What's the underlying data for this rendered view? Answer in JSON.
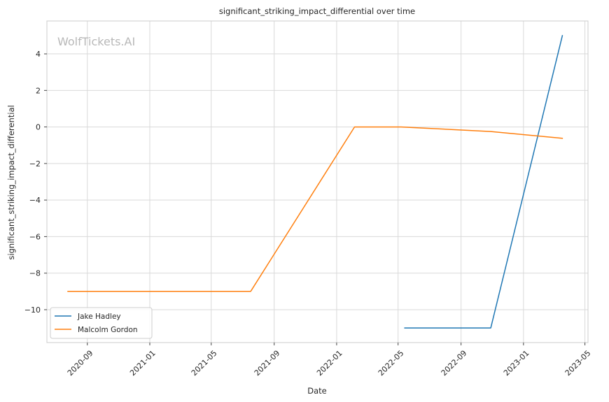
{
  "chart_data": {
    "type": "line",
    "title": "significant_striking_impact_differential over time",
    "xlabel": "Date",
    "ylabel": "significant_striking_impact_differential",
    "watermark": "WolfTickets.AI",
    "x_range": [
      "2020-06-14",
      "2023-05-07"
    ],
    "ylim": [
      -11.8,
      5.8
    ],
    "x_ticks": [
      "2020-09-01",
      "2021-01-01",
      "2021-05-01",
      "2021-09-01",
      "2022-01-01",
      "2022-05-01",
      "2022-09-01",
      "2023-01-01",
      "2023-05-01"
    ],
    "x_tick_labels": [
      "2020-09",
      "2021-01",
      "2021-05",
      "2021-09",
      "2022-01",
      "2022-05",
      "2022-09",
      "2023-01",
      "2023-05"
    ],
    "y_ticks": [
      4,
      2,
      0,
      -2,
      -4,
      -6,
      -8,
      -10
    ],
    "y_tick_labels": [
      "4",
      "2",
      "0",
      "−2",
      "−4",
      "−6",
      "−8",
      "−10"
    ],
    "grid": true,
    "legend_position": "lower-left",
    "series": [
      {
        "name": "Jake Hadley",
        "color": "#1f77b4",
        "x": [
          "2022-05-14",
          "2022-10-29",
          "2023-03-18"
        ],
        "y": [
          -11,
          -11,
          5
        ]
      },
      {
        "name": "Malcolm Gordon",
        "color": "#ff7f0e",
        "x": [
          "2020-07-25",
          "2021-07-17",
          "2022-02-05",
          "2022-05-07",
          "2022-10-29",
          "2023-03-18"
        ],
        "y": [
          -9,
          -9,
          0,
          0,
          -0.25,
          -0.62
        ]
      }
    ]
  }
}
